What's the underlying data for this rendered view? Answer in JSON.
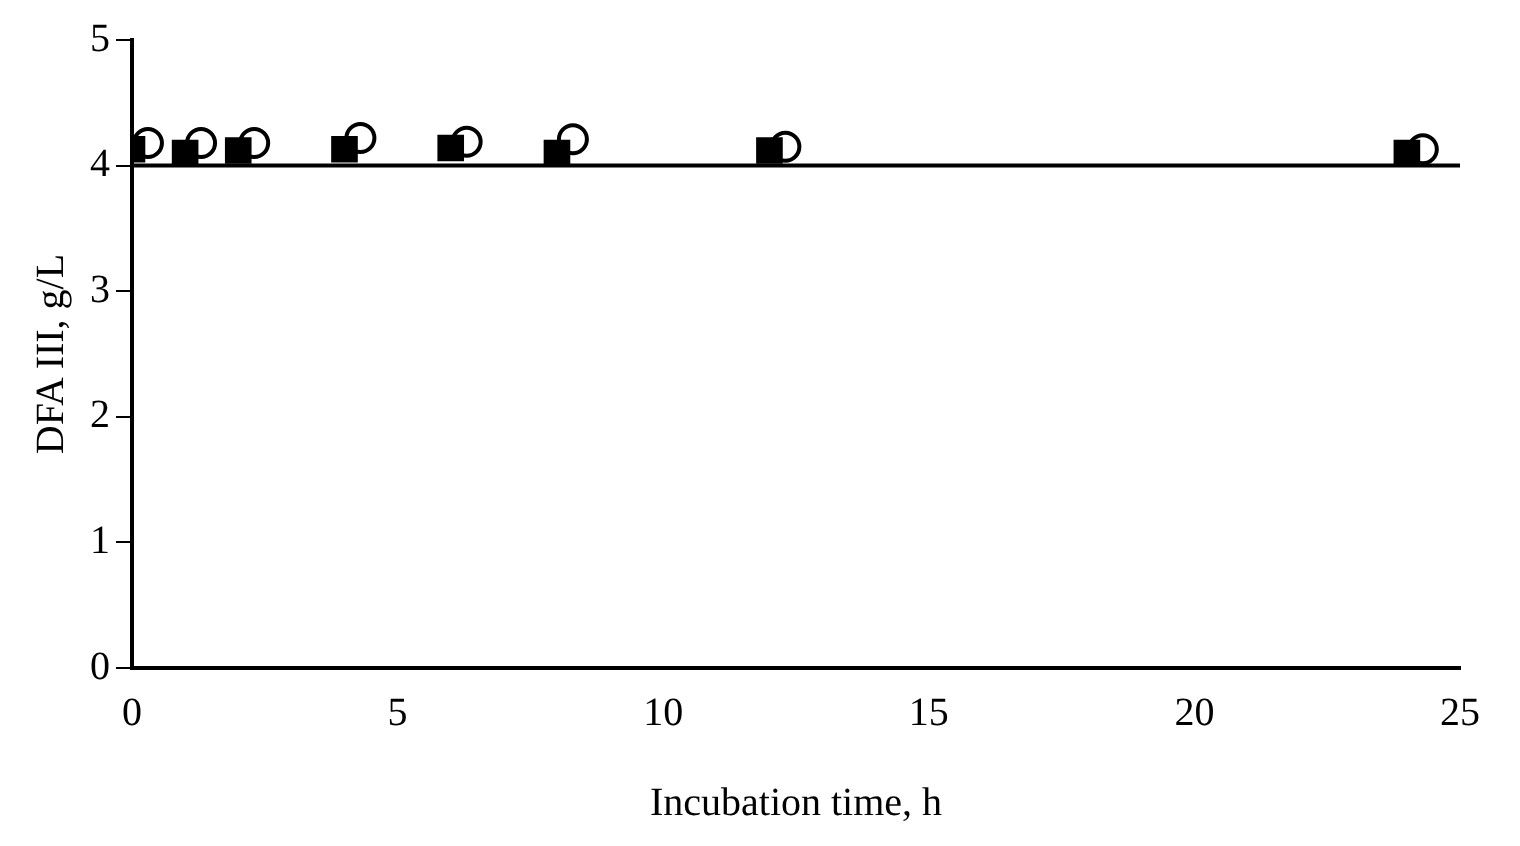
{
  "chart_data": {
    "type": "scatter",
    "xlabel": "Incubation time, h",
    "ylabel": "DFA III, g/L",
    "xlim": [
      0,
      25
    ],
    "xticks": [
      0,
      5,
      10,
      15,
      20,
      25
    ],
    "ylim": [
      0,
      5
    ],
    "yticks": [
      0,
      1,
      2,
      3,
      4,
      5
    ],
    "grid": false,
    "legend": false,
    "ref_lines": [
      {
        "axis": "y",
        "value": 4,
        "color": "#000000",
        "line_style": "solid"
      }
    ],
    "series": [
      {
        "color": "#000000",
        "marker": "square",
        "x": [
          0,
          1,
          2,
          4,
          6,
          8,
          12,
          24
        ],
        "values": [
          4.13,
          4.1,
          4.12,
          4.13,
          4.14,
          4.1,
          4.12,
          4.1
        ]
      },
      {
        "color": "#ffffff",
        "marker": "circle",
        "x": [
          0.3,
          1.3,
          2.3,
          4.3,
          6.3,
          8.3,
          12.3,
          24.3
        ],
        "values": [
          4.18,
          4.18,
          4.18,
          4.22,
          4.19,
          4.21,
          4.15,
          4.13
        ]
      }
    ]
  }
}
